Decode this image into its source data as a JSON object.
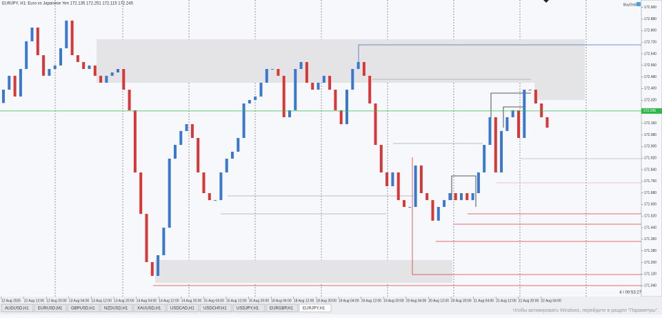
{
  "header": {
    "symbol_info": "EURJPY, H1:  Euro vs Japanese Yen  172.135 172.251 172.115 172.245",
    "button": "BuyOrder"
  },
  "chart": {
    "type": "candlestick",
    "open": 172.3,
    "close": [
      172.392,
      172.488,
      172.345,
      172.535,
      172.726,
      172.821,
      172.63,
      172.488,
      172.535,
      172.559,
      172.678,
      172.869,
      172.63,
      172.583,
      172.535,
      172.559,
      172.488,
      172.44,
      172.488,
      172.511,
      172.535,
      172.392,
      172.25,
      171.821,
      171.535,
      171.202,
      171.107,
      171.25,
      171.44,
      171.916,
      172.011,
      172.107,
      172.154,
      172.059,
      171.821,
      171.678,
      171.63,
      171.63,
      171.821,
      171.916,
      171.964,
      172.059,
      172.297,
      172.321,
      172.345,
      172.44,
      172.535,
      172.535,
      172.488,
      172.202,
      172.25,
      172.535,
      172.583,
      172.44,
      172.392,
      172.44,
      172.488,
      172.392,
      172.25,
      172.154,
      172.392,
      172.535,
      172.583,
      172.488,
      172.297,
      172.011,
      171.821,
      171.726,
      171.821,
      171.63,
      171.583,
      171.583,
      171.869,
      171.678,
      171.63,
      171.488,
      171.583,
      171.63,
      171.678,
      171.63,
      171.678,
      171.63,
      171.678,
      171.821,
      172.011,
      172.202,
      171.821,
      172.107,
      172.202,
      172.25,
      172.059,
      172.392,
      172.392,
      172.297,
      172.202,
      172.13
    ],
    "up_color": "#3a78d0",
    "down_color": "#d93636",
    "ylim": [
      170.964,
      173.011
    ],
    "yticks": [
      {
        "value": 171.04,
        "label": "171.040"
      },
      {
        "value": 171.12,
        "label": "171.120"
      },
      {
        "value": 171.2,
        "label": "171.200"
      },
      {
        "value": 171.28,
        "label": "171.280"
      },
      {
        "value": 171.36,
        "label": "171.360"
      },
      {
        "value": 171.44,
        "label": "171.440"
      },
      {
        "value": 171.52,
        "label": "171.520"
      },
      {
        "value": 171.6,
        "label": "171.600"
      },
      {
        "value": 171.68,
        "label": "171.680"
      },
      {
        "value": 171.76,
        "label": "171.760"
      },
      {
        "value": 171.84,
        "label": "171.840"
      },
      {
        "value": 171.92,
        "label": "171.920"
      },
      {
        "value": 172.0,
        "label": "172.000"
      },
      {
        "value": 172.08,
        "label": "172.080"
      },
      {
        "value": 172.16,
        "label": "172.160"
      },
      {
        "value": 172.24,
        "label": "172.240"
      },
      {
        "value": 172.32,
        "label": "172.320"
      },
      {
        "value": 172.4,
        "label": "172.400"
      },
      {
        "value": 172.48,
        "label": "172.480"
      },
      {
        "value": 172.56,
        "label": "172.560"
      },
      {
        "value": 172.64,
        "label": "172.640"
      },
      {
        "value": 172.72,
        "label": "172.720"
      },
      {
        "value": 172.8,
        "label": "172.800"
      },
      {
        "value": 172.88,
        "label": "172.880"
      },
      {
        "value": 172.96,
        "label": "172.960"
      }
    ],
    "current_price": 172.245,
    "countdown": "4 / 00:53:27",
    "time_labels": [
      "12 Aug 2025",
      "12 Aug 12:00",
      "12 Aug 20:00",
      "13 Aug 04:00",
      "13 Aug 12:00",
      "13 Aug 20:00",
      "14 Aug 04:00",
      "14 Aug 12:00",
      "14 Aug 20:00",
      "15 Aug 04:00",
      "15 Aug 12:00",
      "15 Aug 20:00",
      "18 Aug 04:00",
      "18 Aug 12:00",
      "18 Aug 20:00",
      "19 Aug 04:00",
      "19 Aug 12:00",
      "19 Aug 20:00",
      "20 Aug 04:00",
      "20 Aug 12:00",
      "20 Aug 20:00",
      "21 Aug 04:00",
      "21 Aug 12:00",
      "21 Aug 20:00",
      "22 Aug 04:00"
    ]
  },
  "tabs": [
    "AUDUSD,H1",
    "EURUSD,M1",
    "GBPUSD,H1",
    "NZDUSD,H1",
    "XAUUSD,H1",
    "USDCAD,H1",
    "USDCHF,H1",
    "USDJPY,H1",
    "EURGBP,H1",
    "EURJPY,H1"
  ],
  "watermark": "Чтобы активировать Windows, перейдите в раздел \"Параметры\"."
}
